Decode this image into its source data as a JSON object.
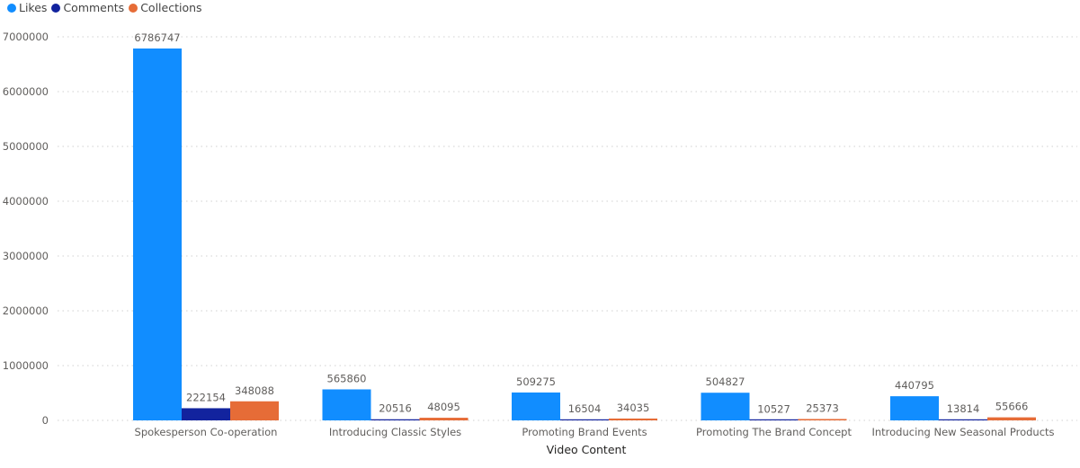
{
  "chart_data": {
    "type": "bar",
    "xlabel": "Video Content",
    "ylabel": "",
    "categories": [
      "Spokesperson Co-operation",
      "Introducing Classic Styles",
      "Promoting Brand Events",
      "Promoting The Brand Concept",
      "Introducing New Seasonal Products"
    ],
    "series": [
      {
        "name": "Likes",
        "color": "#118DFF",
        "values": [
          6786747,
          565860,
          509275,
          504827,
          440795
        ]
      },
      {
        "name": "Comments",
        "color": "#12239E",
        "values": [
          222154,
          20516,
          16504,
          10527,
          13814
        ]
      },
      {
        "name": "Collections",
        "color": "#E66C37",
        "values": [
          348088,
          48095,
          34035,
          25373,
          55666
        ]
      }
    ],
    "yticks": [
      0,
      1000000,
      2000000,
      3000000,
      4000000,
      5000000,
      6000000,
      7000000
    ],
    "ylim": [
      0,
      7000000
    ],
    "grid": true,
    "legend_position": "top-left"
  }
}
